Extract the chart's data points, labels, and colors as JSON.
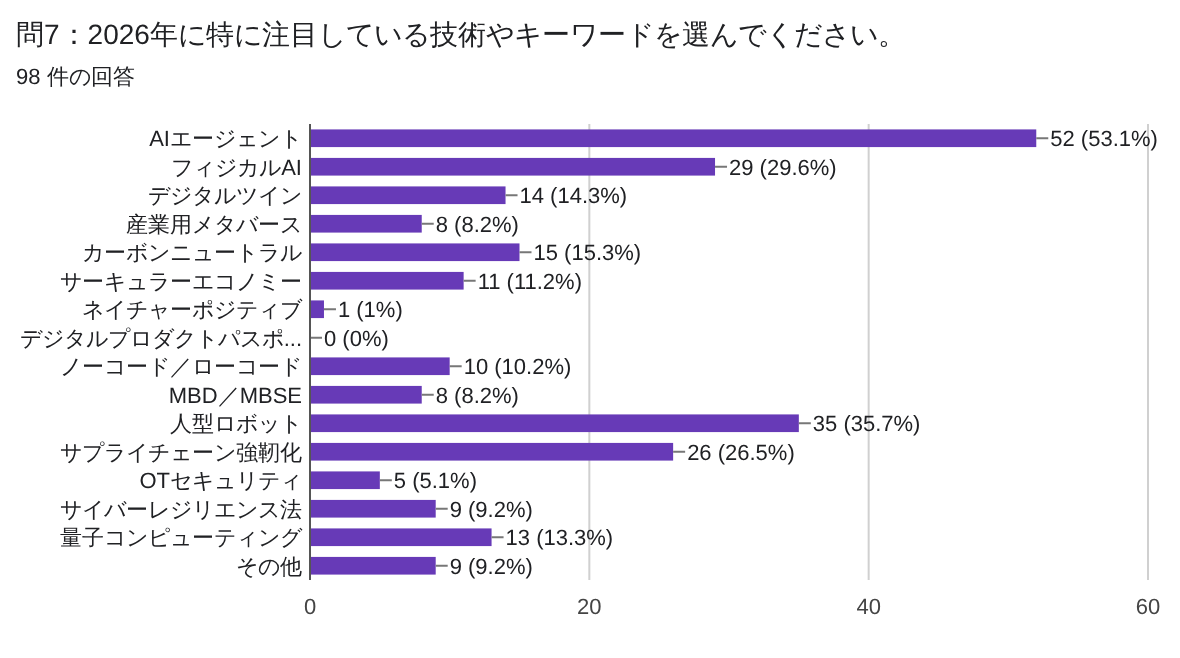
{
  "chart_data": {
    "type": "bar",
    "orientation": "horizontal",
    "title": "問7：2026年に特に注目している技術やキーワードを選んでください。",
    "subtitle": "98 件の回答",
    "categories": [
      "AIエージェント",
      "フィジカルAI",
      "デジタルツイン",
      "産業用メタバース",
      "カーボンニュートラル",
      "サーキュラーエコノミー",
      "ネイチャーポジティブ",
      "デジタルプロダクトパスポ...",
      "ノーコード／ローコード",
      "MBD／MBSE",
      "人型ロボット",
      "サプライチェーン強靭化",
      "OTセキュリティ",
      "サイバーレジリエンス法",
      "量子コンピューティング",
      "その他"
    ],
    "values": [
      52,
      29,
      14,
      8,
      15,
      11,
      1,
      0,
      10,
      8,
      35,
      26,
      5,
      9,
      13,
      9
    ],
    "value_labels": [
      "52 (53.1%)",
      "29 (29.6%)",
      "14 (14.3%)",
      "8 (8.2%)",
      "15 (15.3%)",
      "11 (11.2%)",
      "1 (1%)",
      "0 (0%)",
      "10 (10.2%)",
      "8 (8.2%)",
      "35 (35.7%)",
      "26 (26.5%)",
      "5 (5.1%)",
      "9 (9.2%)",
      "13 (13.3%)",
      "9 (9.2%)"
    ],
    "color": "#673ab7",
    "xlim": [
      0,
      60
    ],
    "xticks": [
      0,
      20,
      40,
      60
    ],
    "grid": "x"
  }
}
